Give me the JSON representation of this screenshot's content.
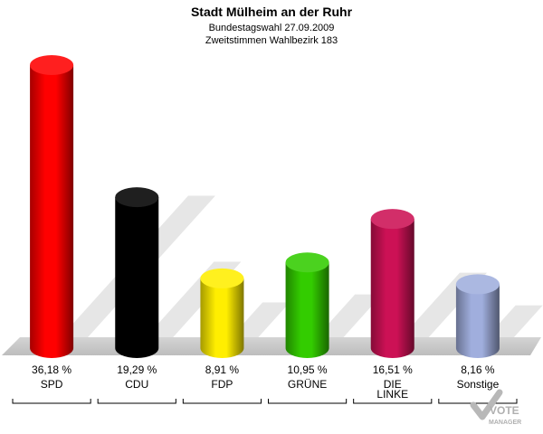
{
  "chart_data": {
    "type": "bar",
    "title": "Stadt Mülheim an der Ruhr",
    "subtitle": "Bundestagswahl 27.09.2009",
    "subtitle2": "Zweitstimmen Wahlbezirk 183",
    "categories": [
      "SPD",
      "CDU",
      "FDP",
      "GRÜNE",
      "DIE LINKE",
      "Sonstige"
    ],
    "values": [
      36.18,
      19.29,
      8.91,
      10.95,
      16.51,
      8.16
    ],
    "value_labels": [
      "36,18 %",
      "19,29 %",
      "8,91 %",
      "10,95 %",
      "16,51 %",
      "8,16 %"
    ],
    "colors": [
      "#ff0000",
      "#000000",
      "#ffee00",
      "#33cc00",
      "#cc1155",
      "#a0aedd"
    ],
    "ylim": [
      0,
      36.18
    ],
    "grid": false,
    "legend": "none"
  },
  "logo": {
    "line1": "VOTE",
    "line2": "MANAGER"
  }
}
